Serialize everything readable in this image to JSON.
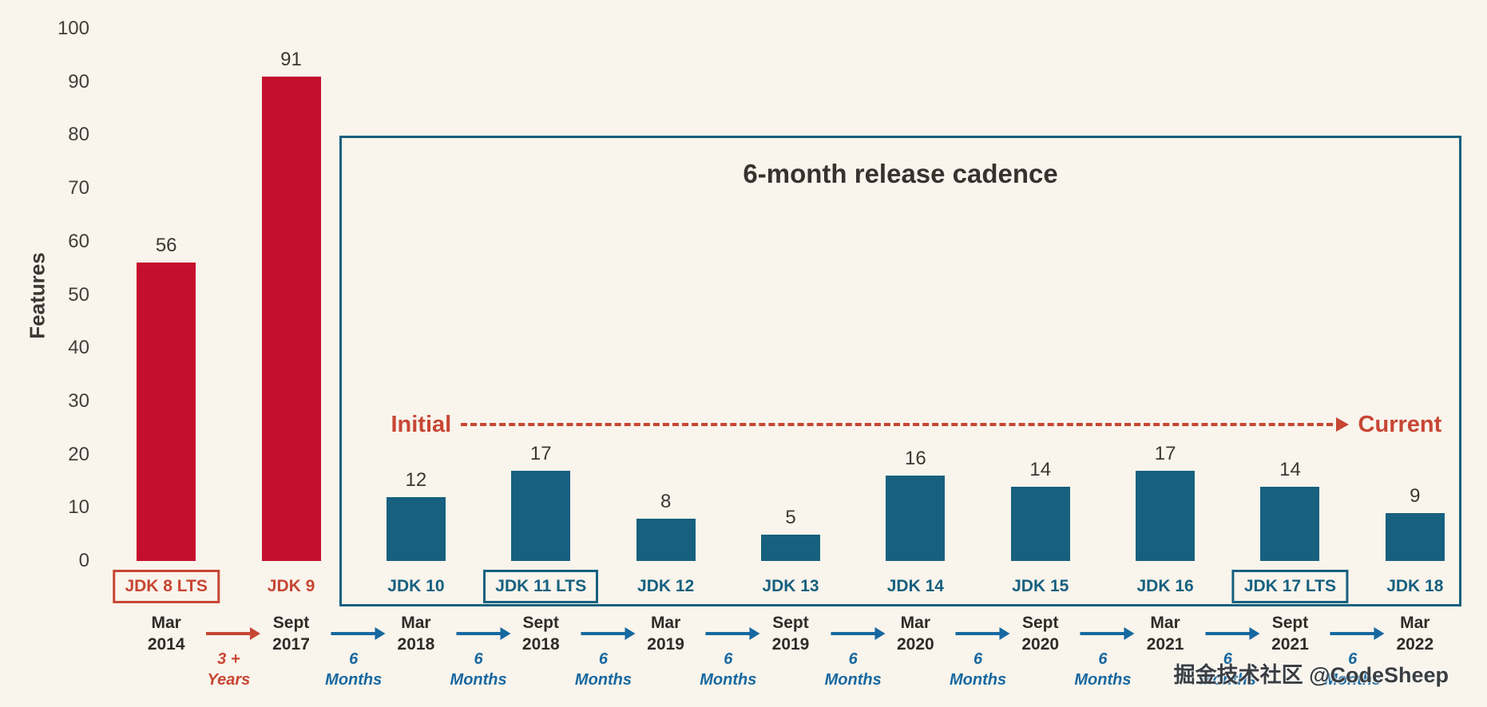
{
  "watermark": "掘金技术社区 @CodeSheep",
  "colors": {
    "background": "#f9f4ec",
    "bar_red": "#c40f2e",
    "bar_blue": "#17607f",
    "accent_red": "#c74634",
    "accent_blue": "#1768a0",
    "text": "#37322e"
  },
  "chart_data": {
    "type": "bar",
    "ylabel": "Features",
    "ylim": [
      0,
      100
    ],
    "yticks": [
      0,
      10,
      20,
      30,
      40,
      50,
      60,
      70,
      80,
      90,
      100
    ],
    "bars": [
      {
        "label": "JDK 8 LTS",
        "value": 56,
        "color": "red",
        "boxed": true,
        "date": "Mar 2014"
      },
      {
        "label": "JDK 9",
        "value": 91,
        "color": "red",
        "boxed": false,
        "date": "Sept 2017"
      },
      {
        "label": "JDK 10",
        "value": 12,
        "color": "blue",
        "boxed": false,
        "date": "Mar 2018"
      },
      {
        "label": "JDK 11 LTS",
        "value": 17,
        "color": "blue",
        "boxed": true,
        "date": "Sept 2018"
      },
      {
        "label": "JDK 12",
        "value": 8,
        "color": "blue",
        "boxed": false,
        "date": "Mar 2019"
      },
      {
        "label": "JDK 13",
        "value": 5,
        "color": "blue",
        "boxed": false,
        "date": "Sept 2019"
      },
      {
        "label": "JDK 14",
        "value": 16,
        "color": "blue",
        "boxed": false,
        "date": "Mar 2020"
      },
      {
        "label": "JDK 15",
        "value": 14,
        "color": "blue",
        "boxed": false,
        "date": "Sept 2020"
      },
      {
        "label": "JDK 16",
        "value": 17,
        "color": "blue",
        "boxed": false,
        "date": "Mar 2021"
      },
      {
        "label": "JDK 17 LTS",
        "value": 14,
        "color": "blue",
        "boxed": true,
        "date": "Sept 2021"
      },
      {
        "label": "JDK 18",
        "value": 9,
        "color": "blue",
        "boxed": false,
        "date": "Mar 2022"
      }
    ],
    "gaps": [
      {
        "lines": [
          "3 +",
          "Years"
        ],
        "color": "red"
      },
      {
        "lines": [
          "6",
          "Months"
        ],
        "color": "blue"
      },
      {
        "lines": [
          "6",
          "Months"
        ],
        "color": "blue"
      },
      {
        "lines": [
          "6",
          "Months"
        ],
        "color": "blue"
      },
      {
        "lines": [
          "6",
          "Months"
        ],
        "color": "blue"
      },
      {
        "lines": [
          "6",
          "Months"
        ],
        "color": "blue"
      },
      {
        "lines": [
          "6",
          "Months"
        ],
        "color": "blue"
      },
      {
        "lines": [
          "6",
          "Months"
        ],
        "color": "blue"
      },
      {
        "lines": [
          "6",
          "Months"
        ],
        "color": "blue"
      },
      {
        "lines": [
          "6",
          "Months"
        ],
        "color": "blue"
      }
    ],
    "annotations": {
      "cadence_box_title": "6-month release cadence",
      "initial_label": "Initial",
      "current_label": "Current"
    }
  }
}
